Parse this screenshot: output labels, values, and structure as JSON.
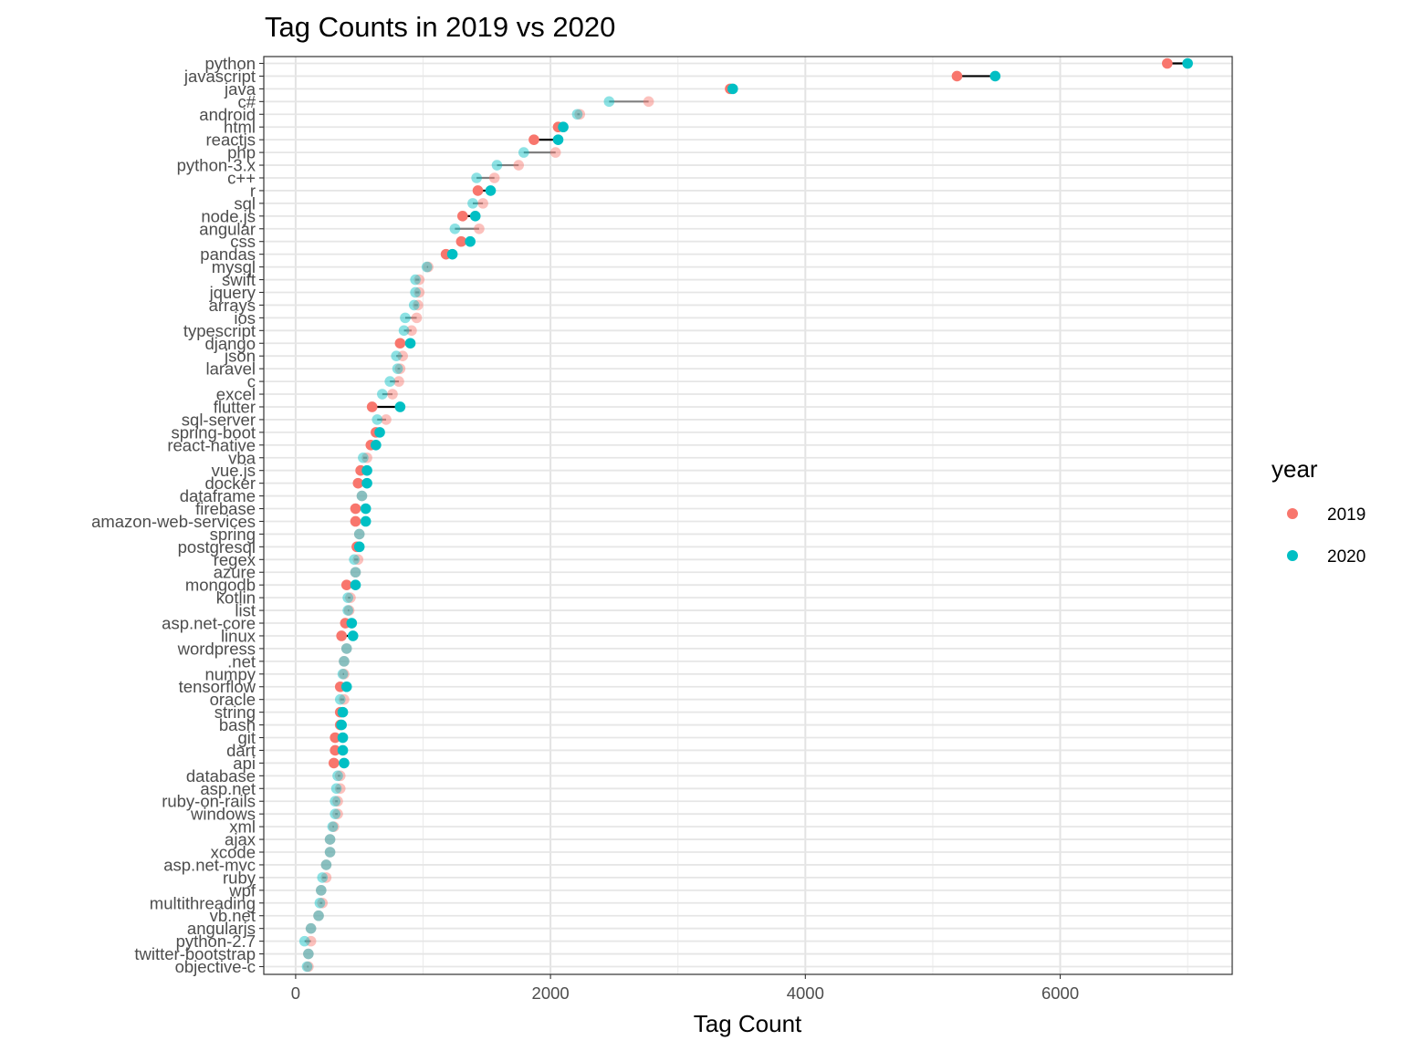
{
  "chart_data": {
    "type": "dumbbell",
    "title": "Tag Counts in 2019 vs 2020",
    "xlabel": "Tag Count",
    "ylabel": "",
    "xlim": [
      -250,
      7350
    ],
    "x_ticks": [
      0,
      2000,
      4000,
      6000
    ],
    "grid": true,
    "legend": {
      "title": "year",
      "position": "right",
      "entries": [
        {
          "label": "2019",
          "color": "#F8766D"
        },
        {
          "label": "2020",
          "color": "#00BFC4"
        }
      ]
    },
    "colors": {
      "y2019": "#F8766D",
      "y2020": "#00BFC4",
      "segment": "#000000"
    },
    "tags": [
      {
        "tag": "python",
        "y2019": 6840,
        "y2020": 7000,
        "increased": true
      },
      {
        "tag": "javascript",
        "y2019": 5190,
        "y2020": 5490,
        "increased": true
      },
      {
        "tag": "java",
        "y2019": 3410,
        "y2020": 3430,
        "increased": true
      },
      {
        "tag": "c#",
        "y2019": 2770,
        "y2020": 2460,
        "increased": false
      },
      {
        "tag": "android",
        "y2019": 2230,
        "y2020": 2210,
        "increased": false
      },
      {
        "tag": "html",
        "y2019": 2060,
        "y2020": 2100,
        "increased": true
      },
      {
        "tag": "reactjs",
        "y2019": 1870,
        "y2020": 2060,
        "increased": true
      },
      {
        "tag": "php",
        "y2019": 2040,
        "y2020": 1790,
        "increased": false
      },
      {
        "tag": "python-3.x",
        "y2019": 1750,
        "y2020": 1580,
        "increased": false
      },
      {
        "tag": "c++",
        "y2019": 1560,
        "y2020": 1420,
        "increased": false
      },
      {
        "tag": "r",
        "y2019": 1430,
        "y2020": 1530,
        "increased": true
      },
      {
        "tag": "sql",
        "y2019": 1470,
        "y2020": 1390,
        "increased": false
      },
      {
        "tag": "node.js",
        "y2019": 1310,
        "y2020": 1410,
        "increased": true
      },
      {
        "tag": "angular",
        "y2019": 1440,
        "y2020": 1250,
        "increased": false
      },
      {
        "tag": "css",
        "y2019": 1300,
        "y2020": 1370,
        "increased": true
      },
      {
        "tag": "pandas",
        "y2019": 1180,
        "y2020": 1230,
        "increased": true
      },
      {
        "tag": "mysql",
        "y2019": 1040,
        "y2020": 1030,
        "increased": false
      },
      {
        "tag": "swift",
        "y2019": 970,
        "y2020": 940,
        "increased": false
      },
      {
        "tag": "jquery",
        "y2019": 970,
        "y2020": 940,
        "increased": false
      },
      {
        "tag": "arrays",
        "y2019": 960,
        "y2020": 930,
        "increased": false
      },
      {
        "tag": "ios",
        "y2019": 950,
        "y2020": 860,
        "increased": false
      },
      {
        "tag": "typescript",
        "y2019": 910,
        "y2020": 850,
        "increased": false
      },
      {
        "tag": "django",
        "y2019": 820,
        "y2020": 900,
        "increased": true
      },
      {
        "tag": "json",
        "y2019": 840,
        "y2020": 790,
        "increased": false
      },
      {
        "tag": "laravel",
        "y2019": 820,
        "y2020": 800,
        "increased": false
      },
      {
        "tag": "c",
        "y2019": 810,
        "y2020": 740,
        "increased": false
      },
      {
        "tag": "excel",
        "y2019": 760,
        "y2020": 680,
        "increased": false
      },
      {
        "tag": "flutter",
        "y2019": 600,
        "y2020": 820,
        "increased": true
      },
      {
        "tag": "sql-server",
        "y2019": 710,
        "y2020": 640,
        "increased": false
      },
      {
        "tag": "spring-boot",
        "y2019": 630,
        "y2020": 660,
        "increased": true
      },
      {
        "tag": "react-native",
        "y2019": 590,
        "y2020": 630,
        "increased": true
      },
      {
        "tag": "vba",
        "y2019": 560,
        "y2020": 530,
        "increased": false
      },
      {
        "tag": "vue.js",
        "y2019": 510,
        "y2020": 560,
        "increased": true
      },
      {
        "tag": "docker",
        "y2019": 490,
        "y2020": 560,
        "increased": true
      },
      {
        "tag": "dataframe",
        "y2019": 520,
        "y2020": 520,
        "increased": false
      },
      {
        "tag": "firebase",
        "y2019": 470,
        "y2020": 550,
        "increased": true
      },
      {
        "tag": "amazon-web-services",
        "y2019": 470,
        "y2020": 550,
        "increased": true
      },
      {
        "tag": "spring",
        "y2019": 500,
        "y2020": 500,
        "increased": false
      },
      {
        "tag": "postgresql",
        "y2019": 480,
        "y2020": 500,
        "increased": true
      },
      {
        "tag": "regex",
        "y2019": 490,
        "y2020": 460,
        "increased": false
      },
      {
        "tag": "azure",
        "y2019": 470,
        "y2020": 470,
        "increased": false
      },
      {
        "tag": "mongodb",
        "y2019": 400,
        "y2020": 470,
        "increased": true
      },
      {
        "tag": "kotlin",
        "y2019": 430,
        "y2020": 410,
        "increased": false
      },
      {
        "tag": "list",
        "y2019": 420,
        "y2020": 410,
        "increased": false
      },
      {
        "tag": "asp.net-core",
        "y2019": 390,
        "y2020": 440,
        "increased": true
      },
      {
        "tag": "linux",
        "y2019": 360,
        "y2020": 450,
        "increased": true
      },
      {
        "tag": "wordpress",
        "y2019": 400,
        "y2020": 400,
        "increased": false
      },
      {
        "tag": ".net",
        "y2019": 380,
        "y2020": 380,
        "increased": false
      },
      {
        "tag": "numpy",
        "y2019": 380,
        "y2020": 370,
        "increased": false
      },
      {
        "tag": "tensorflow",
        "y2019": 350,
        "y2020": 400,
        "increased": true
      },
      {
        "tag": "oracle",
        "y2019": 380,
        "y2020": 350,
        "increased": false
      },
      {
        "tag": "string",
        "y2019": 350,
        "y2020": 370,
        "increased": true
      },
      {
        "tag": "bash",
        "y2019": 350,
        "y2020": 360,
        "increased": true
      },
      {
        "tag": "git",
        "y2019": 310,
        "y2020": 370,
        "increased": true
      },
      {
        "tag": "dart",
        "y2019": 310,
        "y2020": 370,
        "increased": true
      },
      {
        "tag": "api",
        "y2019": 300,
        "y2020": 380,
        "increased": true
      },
      {
        "tag": "database",
        "y2019": 350,
        "y2020": 330,
        "increased": false
      },
      {
        "tag": "asp.net",
        "y2019": 350,
        "y2020": 320,
        "increased": false
      },
      {
        "tag": "ruby-on-rails",
        "y2019": 330,
        "y2020": 310,
        "increased": false
      },
      {
        "tag": "windows",
        "y2019": 330,
        "y2020": 310,
        "increased": false
      },
      {
        "tag": "xml",
        "y2019": 300,
        "y2020": 290,
        "increased": false
      },
      {
        "tag": "ajax",
        "y2019": 270,
        "y2020": 270,
        "increased": false
      },
      {
        "tag": "xcode",
        "y2019": 270,
        "y2020": 270,
        "increased": false
      },
      {
        "tag": "asp.net-mvc",
        "y2019": 240,
        "y2020": 240,
        "increased": false
      },
      {
        "tag": "ruby",
        "y2019": 240,
        "y2020": 210,
        "increased": false
      },
      {
        "tag": "wpf",
        "y2019": 200,
        "y2020": 200,
        "increased": false
      },
      {
        "tag": "multithreading",
        "y2019": 210,
        "y2020": 190,
        "increased": false
      },
      {
        "tag": "vb.net",
        "y2019": 180,
        "y2020": 180,
        "increased": false
      },
      {
        "tag": "angularjs",
        "y2019": 120,
        "y2020": 120,
        "increased": false
      },
      {
        "tag": "python-2.7",
        "y2019": 120,
        "y2020": 70,
        "increased": false
      },
      {
        "tag": "twitter-bootstrap",
        "y2019": 100,
        "y2020": 100,
        "increased": false
      },
      {
        "tag": "objective-c",
        "y2019": 100,
        "y2020": 90,
        "increased": false
      }
    ]
  }
}
